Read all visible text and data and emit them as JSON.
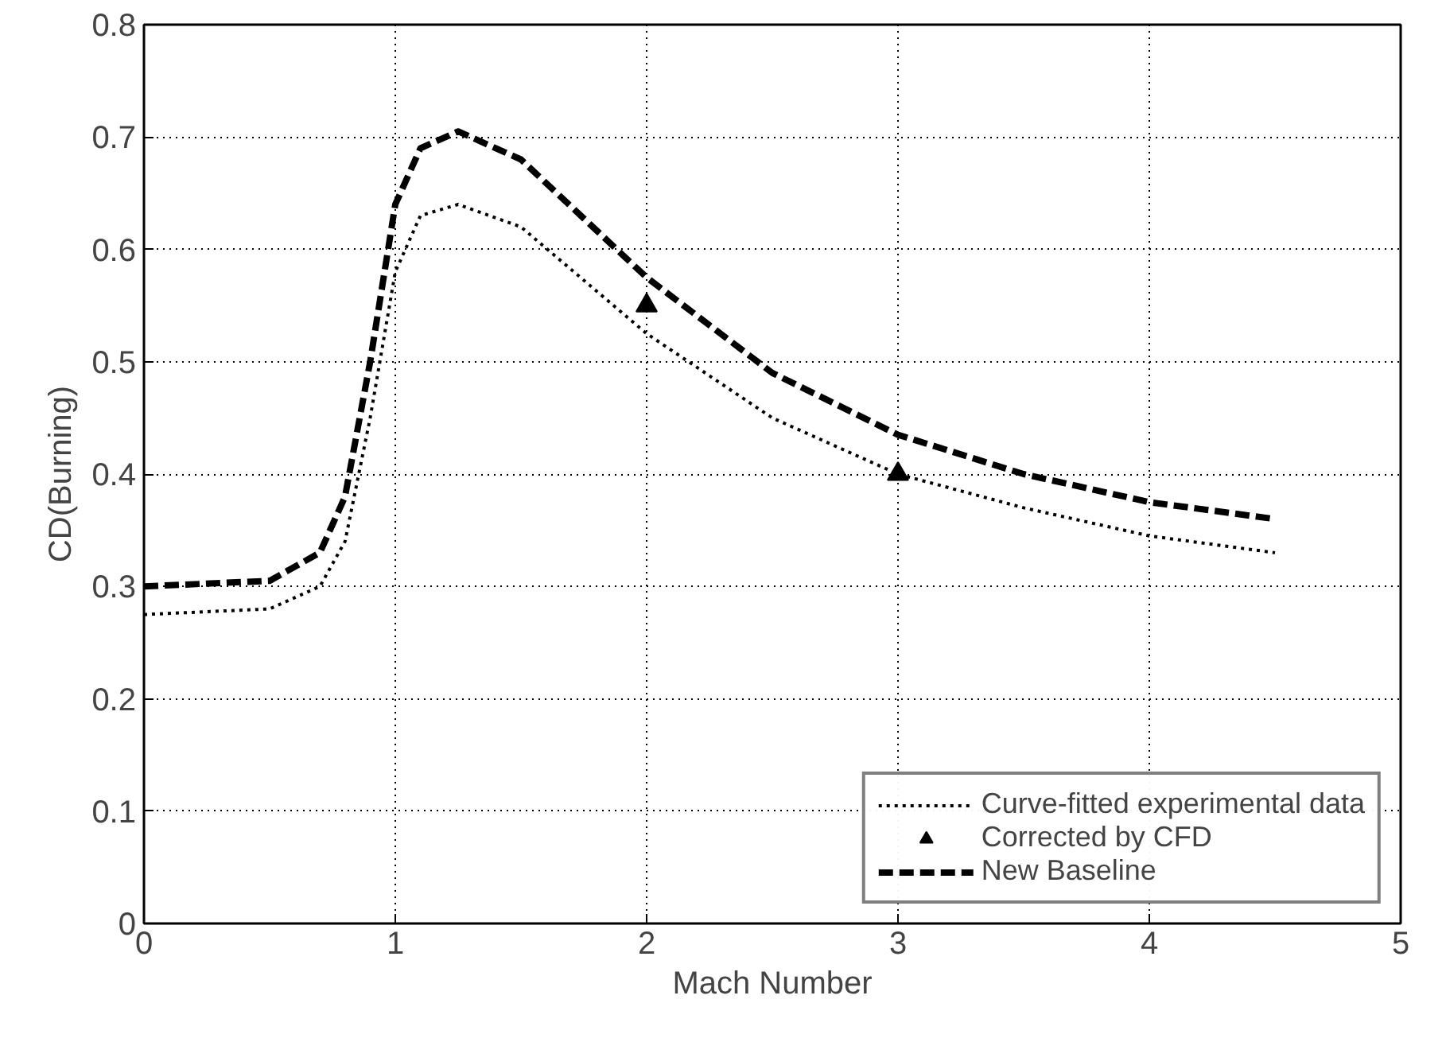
{
  "chart_data": {
    "type": "line",
    "xlabel": "Mach Number",
    "ylabel": "CD(Burning)",
    "xlim": [
      0,
      5
    ],
    "ylim": [
      0,
      0.8
    ],
    "xticks": [
      0,
      1,
      2,
      3,
      4,
      5
    ],
    "yticks": [
      0,
      0.1,
      0.2,
      0.3,
      0.4,
      0.5,
      0.6,
      0.7,
      0.8
    ],
    "grid": true,
    "legend": "bottom right",
    "series": [
      {
        "name": "Curve-fitted experimental data",
        "line_style": "dotted",
        "color": "#000000",
        "x": [
          0,
          0.5,
          0.7,
          0.8,
          0.9,
          1.0,
          1.1,
          1.25,
          1.5,
          2.0,
          2.5,
          3.0,
          3.5,
          4.0,
          4.5
        ],
        "values": [
          0.275,
          0.28,
          0.3,
          0.34,
          0.45,
          0.58,
          0.63,
          0.64,
          0.62,
          0.525,
          0.45,
          0.4,
          0.37,
          0.345,
          0.33
        ]
      },
      {
        "name": "Corrected by CFD",
        "type": "scatter",
        "marker": "triangle",
        "color": "#000000",
        "x": [
          2,
          3
        ],
        "values": [
          0.55,
          0.4
        ]
      },
      {
        "name": "New Baseline",
        "line_style": "dashed",
        "color": "#000000",
        "x": [
          0,
          0.5,
          0.7,
          0.8,
          0.9,
          1.0,
          1.1,
          1.25,
          1.5,
          2.0,
          2.5,
          3.0,
          3.5,
          4.0,
          4.5
        ],
        "values": [
          0.3,
          0.305,
          0.33,
          0.38,
          0.5,
          0.64,
          0.69,
          0.705,
          0.68,
          0.575,
          0.49,
          0.435,
          0.4,
          0.375,
          0.36
        ]
      }
    ]
  }
}
